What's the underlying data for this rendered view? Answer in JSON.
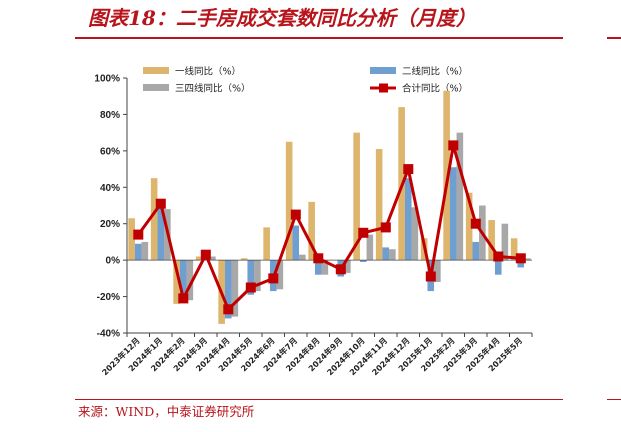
{
  "header": {
    "title": "图表18：二手房成交套数同比分析（月度）"
  },
  "footer": {
    "source": "来源：WIND，中泰证券研究所"
  },
  "chart_data": {
    "type": "bar",
    "title": "图表18：二手房成交套数同比分析（月度）",
    "ylim": [
      -40,
      100
    ],
    "yticks": [
      "-40%",
      "-20%",
      "0%",
      "20%",
      "40%",
      "60%",
      "80%",
      "100%"
    ],
    "ytick_values": [
      -40,
      -20,
      0,
      20,
      40,
      60,
      80,
      100
    ],
    "grid": false,
    "legend_position": "top",
    "categories": [
      "2023年12月",
      "2024年1月",
      "2024年2月",
      "2024年3月",
      "2024年4月",
      "2024年5月",
      "2024年6月",
      "2024年7月",
      "2024年8月",
      "2024年9月",
      "2024年10月",
      "2024年11月",
      "2024年12月",
      "2025年1月",
      "2025年2月",
      "2025年3月",
      "2025年4月",
      "2025年5月"
    ],
    "series": [
      {
        "name": "一线同比（%）",
        "kind": "bar",
        "color": "#ddb56d",
        "values": [
          23,
          45,
          -24,
          2,
          -35,
          1,
          18,
          65,
          32,
          0,
          70,
          61,
          84,
          12,
          93,
          37,
          22,
          12
        ]
      },
      {
        "name": "二线同比（%）",
        "kind": "bar",
        "color": "#6f9fd0",
        "values": [
          9,
          29,
          -22,
          3,
          -32,
          -19,
          -17,
          19,
          -8,
          -9,
          -1,
          7,
          45,
          -17,
          51,
          10,
          -8,
          -4
        ]
      },
      {
        "name": "三四线同比（%）",
        "kind": "bar",
        "color": "#a8a8a8",
        "values": [
          10,
          28,
          -22,
          2,
          -31,
          -17,
          -16,
          3,
          -8,
          -7,
          14,
          6,
          29,
          -12,
          70,
          30,
          20,
          1
        ]
      },
      {
        "name": "合计同比（%）",
        "kind": "line",
        "color": "#c00000",
        "values": [
          14,
          31,
          -21,
          3,
          -27,
          -15,
          -10,
          25,
          1,
          -5,
          15,
          18,
          50,
          -9,
          63,
          20,
          2,
          1
        ]
      }
    ]
  }
}
